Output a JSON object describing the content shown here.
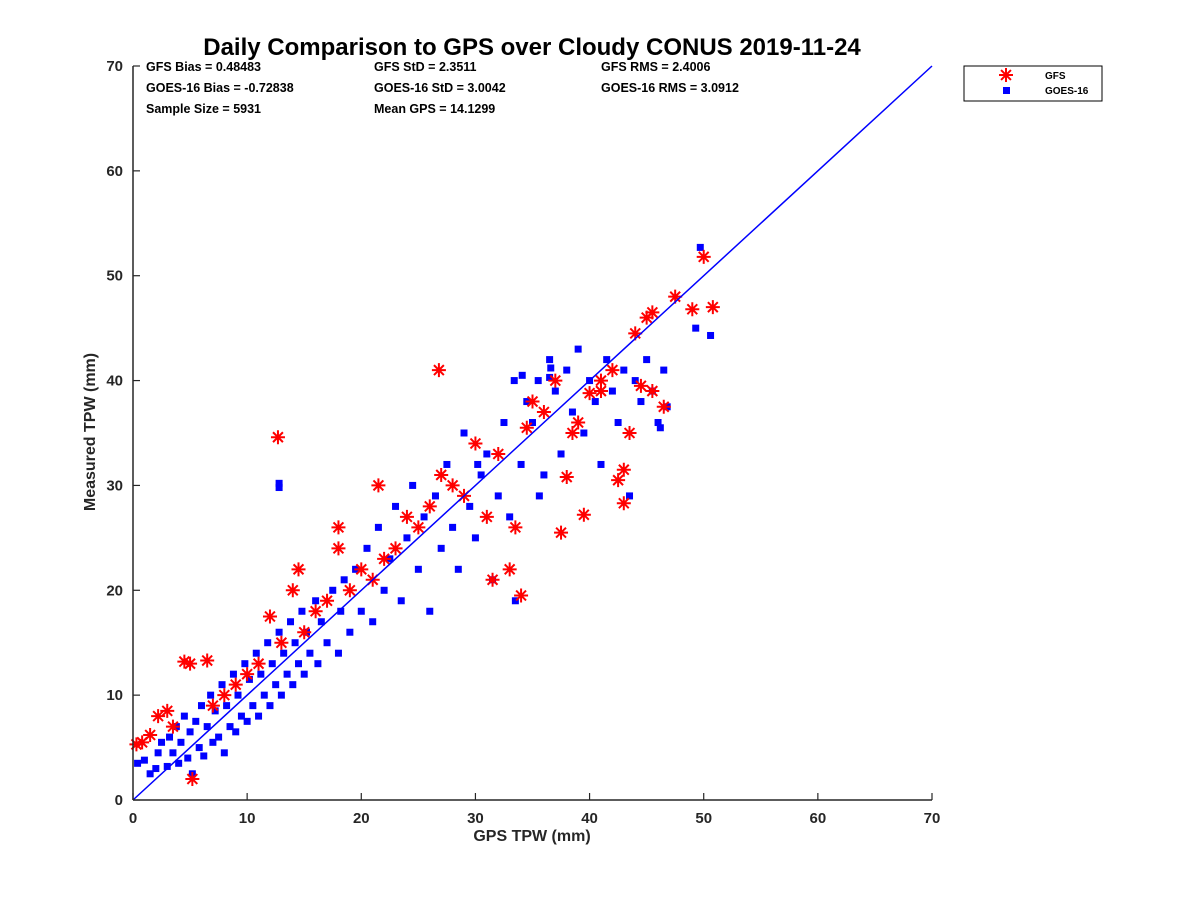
{
  "colors": {
    "gfs": "#ff0000",
    "goes": "#0000ff",
    "axis": "#262626",
    "fit_line": "#0000ff"
  },
  "chart_data": {
    "type": "scatter",
    "title": "Daily Comparison to GPS over Cloudy CONUS 2019-11-24",
    "xlabel": "GPS TPW (mm)",
    "ylabel": "Measured TPW (mm)",
    "xlim": [
      0,
      70
    ],
    "ylim": [
      0,
      70
    ],
    "xticks": [
      "0",
      "10",
      "20",
      "30",
      "40",
      "50",
      "60",
      "70"
    ],
    "yticks": [
      "0",
      "10",
      "20",
      "30",
      "40",
      "50",
      "60",
      "70"
    ],
    "grid": false,
    "legend_position": "outside-top-right",
    "reference_line": {
      "x": [
        0,
        70
      ],
      "y": [
        0,
        70
      ]
    },
    "stats": [
      "GFS Bias = 0.48483",
      "GFS StD = 2.3511",
      "GFS RMS = 2.4006",
      "GOES-16 Bias = -0.72838",
      "GOES-16 StD = 3.0042",
      "GOES-16 RMS = 3.0912",
      "Sample Size = 5931",
      "Mean GPS = 14.1299"
    ],
    "series": [
      {
        "name": "GOES-16",
        "marker": "square",
        "points": [
          [
            0.4,
            3.5
          ],
          [
            1,
            3.8
          ],
          [
            1.5,
            2.5
          ],
          [
            2,
            3
          ],
          [
            2.2,
            4.5
          ],
          [
            2.5,
            5.5
          ],
          [
            3,
            3.2
          ],
          [
            3.2,
            6
          ],
          [
            3.5,
            4.5
          ],
          [
            3.8,
            7
          ],
          [
            4,
            3.5
          ],
          [
            4.2,
            5.5
          ],
          [
            4.5,
            8
          ],
          [
            4.8,
            4
          ],
          [
            5,
            6.5
          ],
          [
            5.2,
            2.5
          ],
          [
            5.5,
            7.5
          ],
          [
            5.8,
            5
          ],
          [
            6,
            9
          ],
          [
            6.2,
            4.2
          ],
          [
            6.5,
            7
          ],
          [
            6.8,
            10
          ],
          [
            7,
            5.5
          ],
          [
            7.2,
            8.5
          ],
          [
            7.5,
            6
          ],
          [
            7.8,
            11
          ],
          [
            8,
            4.5
          ],
          [
            8.2,
            9
          ],
          [
            8.5,
            7
          ],
          [
            8.8,
            12
          ],
          [
            9,
            6.5
          ],
          [
            9.2,
            10
          ],
          [
            9.5,
            8
          ],
          [
            9.8,
            13
          ],
          [
            10,
            7.5
          ],
          [
            10.2,
            11.5
          ],
          [
            10.5,
            9
          ],
          [
            10.8,
            14
          ],
          [
            11,
            8
          ],
          [
            11.2,
            12
          ],
          [
            11.5,
            10
          ],
          [
            11.8,
            15
          ],
          [
            12,
            9
          ],
          [
            12.2,
            13
          ],
          [
            12.5,
            11
          ],
          [
            12.8,
            16
          ],
          [
            13,
            10
          ],
          [
            13.2,
            14
          ],
          [
            13.5,
            12
          ],
          [
            13.8,
            17
          ],
          [
            14,
            11
          ],
          [
            14.2,
            15
          ],
          [
            14.5,
            13
          ],
          [
            14.8,
            18
          ],
          [
            15,
            12
          ],
          [
            15.2,
            16
          ],
          [
            15.5,
            14
          ],
          [
            16,
            19
          ],
          [
            16.2,
            13
          ],
          [
            16.5,
            17
          ],
          [
            17,
            15
          ],
          [
            17.5,
            20
          ],
          [
            18,
            14
          ],
          [
            18.2,
            18
          ],
          [
            18.5,
            21
          ],
          [
            19,
            16
          ],
          [
            19.5,
            22
          ],
          [
            20,
            18
          ],
          [
            20.5,
            24
          ],
          [
            21,
            17
          ],
          [
            21.5,
            26
          ],
          [
            22,
            20
          ],
          [
            22.5,
            23
          ],
          [
            23,
            28
          ],
          [
            23.5,
            19
          ],
          [
            24,
            25
          ],
          [
            24.5,
            30
          ],
          [
            25,
            22
          ],
          [
            25.5,
            27
          ],
          [
            26,
            18
          ],
          [
            26.5,
            29
          ],
          [
            27,
            24
          ],
          [
            27.5,
            32
          ],
          [
            28,
            26
          ],
          [
            28.5,
            22
          ],
          [
            29,
            35
          ],
          [
            29.5,
            28
          ],
          [
            30,
            25
          ],
          [
            30.5,
            31
          ],
          [
            31,
            33
          ],
          [
            31.5,
            21
          ],
          [
            32,
            29
          ],
          [
            32.5,
            36
          ],
          [
            33,
            27
          ],
          [
            33.5,
            19
          ],
          [
            34,
            32
          ],
          [
            34.5,
            38
          ],
          [
            35,
            36
          ],
          [
            35.5,
            40
          ],
          [
            36,
            31
          ],
          [
            36.5,
            42
          ],
          [
            37,
            39
          ],
          [
            37.5,
            33
          ],
          [
            38,
            41
          ],
          [
            38.5,
            37
          ],
          [
            39,
            43
          ],
          [
            39.5,
            35
          ],
          [
            40,
            40
          ],
          [
            40.5,
            38
          ],
          [
            41,
            32
          ],
          [
            41.5,
            42
          ],
          [
            42,
            39
          ],
          [
            42.5,
            36
          ],
          [
            43,
            41
          ],
          [
            43.5,
            29
          ],
          [
            44,
            40
          ],
          [
            44.5,
            38
          ],
          [
            45,
            42
          ],
          [
            45.5,
            39
          ],
          [
            46,
            36
          ],
          [
            46.2,
            35.5
          ],
          [
            46.5,
            41
          ],
          [
            46.8,
            37.5
          ],
          [
            49.3,
            45
          ],
          [
            50.6,
            44.3
          ],
          [
            49.7,
            52.7
          ],
          [
            12.8,
            30.2
          ],
          [
            12.8,
            29.8
          ],
          [
            30.2,
            32
          ],
          [
            33.4,
            40
          ],
          [
            36.6,
            41.2
          ],
          [
            36.5,
            40.3
          ],
          [
            34.1,
            40.5
          ],
          [
            35.6,
            29
          ]
        ]
      },
      {
        "name": "GFS",
        "marker": "asterisk",
        "points": [
          [
            0.3,
            5.3
          ],
          [
            0.8,
            5.5
          ],
          [
            1.5,
            6.2
          ],
          [
            2.2,
            8
          ],
          [
            3,
            8.5
          ],
          [
            3.5,
            7
          ],
          [
            4.5,
            13.2
          ],
          [
            5,
            13
          ],
          [
            5.2,
            2
          ],
          [
            6.5,
            13.3
          ],
          [
            7,
            9
          ],
          [
            8,
            10
          ],
          [
            9,
            11
          ],
          [
            10,
            12
          ],
          [
            11,
            13
          ],
          [
            12,
            17.5
          ],
          [
            13,
            15
          ],
          [
            14,
            20
          ],
          [
            14.5,
            22
          ],
          [
            15,
            16
          ],
          [
            16,
            18
          ],
          [
            17,
            19
          ],
          [
            18,
            24
          ],
          [
            18,
            26
          ],
          [
            19,
            20
          ],
          [
            20,
            22
          ],
          [
            21,
            21
          ],
          [
            21.5,
            30
          ],
          [
            22,
            23
          ],
          [
            23,
            24
          ],
          [
            24,
            27
          ],
          [
            25,
            26
          ],
          [
            26,
            28
          ],
          [
            27,
            31
          ],
          [
            28,
            30
          ],
          [
            29,
            29
          ],
          [
            30,
            34
          ],
          [
            31,
            27
          ],
          [
            31.5,
            21
          ],
          [
            32,
            33
          ],
          [
            33,
            22
          ],
          [
            33.5,
            26
          ],
          [
            34,
            19.5
          ],
          [
            34.5,
            35.5
          ],
          [
            35,
            38
          ],
          [
            36,
            37
          ],
          [
            37,
            40
          ],
          [
            37.5,
            25.5
          ],
          [
            38,
            30.8
          ],
          [
            38.5,
            35
          ],
          [
            39,
            36
          ],
          [
            39.5,
            27.2
          ],
          [
            40,
            38.8
          ],
          [
            41,
            39
          ],
          [
            42,
            41
          ],
          [
            42.5,
            30.5
          ],
          [
            43,
            28.3
          ],
          [
            43.5,
            35
          ],
          [
            44,
            44.5
          ],
          [
            45,
            46
          ],
          [
            45.5,
            46.5
          ],
          [
            46.5,
            37.5
          ],
          [
            47.5,
            48
          ],
          [
            49,
            46.8
          ],
          [
            50.8,
            47
          ],
          [
            50,
            51.8
          ],
          [
            12.7,
            34.6
          ],
          [
            26.8,
            41
          ],
          [
            41,
            40
          ],
          [
            43,
            31.5
          ],
          [
            44.5,
            39.5
          ],
          [
            45.5,
            39
          ]
        ]
      }
    ]
  }
}
